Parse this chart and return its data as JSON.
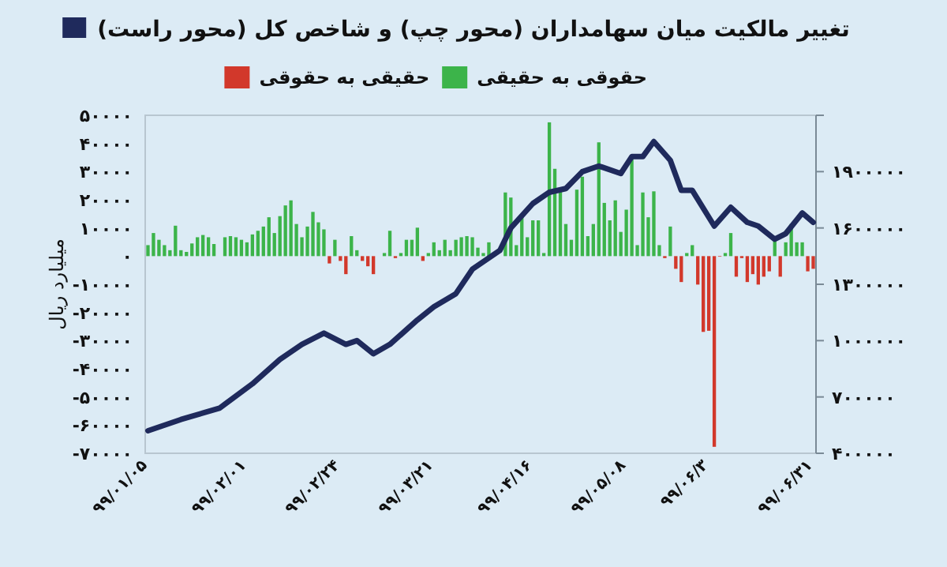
{
  "chart_data": {
    "type": "bar",
    "ylabel": "میلیارد ریال",
    "legend": "top",
    "categories": [
      "۹۹/۰۱/۰۵",
      null,
      null,
      null,
      null,
      null,
      null,
      null,
      null,
      null,
      null,
      null,
      null,
      null,
      null,
      null,
      null,
      null,
      "۹۹/۰۲/۰۱",
      null,
      null,
      null,
      null,
      null,
      null,
      null,
      null,
      null,
      null,
      null,
      null,
      null,
      null,
      null,
      null,
      "۹۹/۰۲/۲۴",
      null,
      null,
      null,
      null,
      null,
      null,
      null,
      null,
      null,
      null,
      null,
      null,
      null,
      null,
      null,
      null,
      "۹۹/۰۳/۲۱",
      null,
      null,
      null,
      null,
      null,
      null,
      null,
      null,
      null,
      null,
      null,
      null,
      null,
      null,
      null,
      null,
      null,
      "۹۹/۰۴/۱۶",
      null,
      null,
      null,
      null,
      null,
      null,
      null,
      null,
      null,
      null,
      null,
      null,
      null,
      null,
      null,
      null,
      "۹۹/۰۵/۰۸",
      null,
      null,
      null,
      null,
      null,
      null,
      null,
      null,
      null,
      null,
      null,
      null,
      null,
      null,
      "۹۹/۰۶/۳",
      null,
      null,
      null,
      null,
      null,
      null,
      null,
      null,
      null,
      null,
      null,
      null,
      null,
      null,
      null,
      null,
      null,
      null,
      "۹۹/۰۶/۳۱"
    ],
    "ylim": [
      -70000,
      50000
    ],
    "yticks": [
      {
        "value": 50000,
        "label": "۵۰۰۰۰"
      },
      {
        "value": 40000,
        "label": "۴۰۰۰۰"
      },
      {
        "value": 30000,
        "label": "۳۰۰۰۰"
      },
      {
        "value": 20000,
        "label": "۲۰۰۰۰"
      },
      {
        "value": 10000,
        "label": "۱۰۰۰۰"
      },
      {
        "value": 0,
        "label": "۰"
      },
      {
        "value": -10000,
        "label": "-۱۰۰۰۰"
      },
      {
        "value": -20000,
        "label": "-۲۰۰۰۰"
      },
      {
        "value": -30000,
        "label": "-۳۰۰۰۰"
      },
      {
        "value": -40000,
        "label": "-۴۰۰۰۰"
      },
      {
        "value": -50000,
        "label": "-۵۰۰۰۰"
      },
      {
        "value": -60000,
        "label": "-۶۰۰۰۰"
      },
      {
        "value": -70000,
        "label": "-۷۰۰۰۰"
      }
    ],
    "y2lim": [
      400000,
      2200000
    ],
    "y2ticks": [
      {
        "value": 400000,
        "label": "۴۰۰۰۰۰"
      },
      {
        "value": 700000,
        "label": "۷۰۰۰۰۰"
      },
      {
        "value": 1000000,
        "label": "۱۰۰۰۰۰۰"
      },
      {
        "value": 1300000,
        "label": "۱۳۰۰۰۰۰"
      },
      {
        "value": 1600000,
        "label": "۱۶۰۰۰۰۰"
      },
      {
        "value": 1900000,
        "label": "۱۹۰۰۰۰۰"
      },
      {
        "value": 2200000,
        "label": null
      }
    ],
    "series": [
      {
        "name": "حقوقی به حقیقی",
        "color": "#3cb44a",
        "values": [
          3900,
          8200,
          5800,
          3900,
          2100,
          10800,
          2100,
          1500,
          4500,
          6700,
          7500,
          6700,
          4300,
          null,
          6700,
          7100,
          6700,
          5800,
          4900,
          7700,
          9000,
          10500,
          13800,
          8200,
          14200,
          18000,
          19800,
          11400,
          6700,
          10500,
          15700,
          12000,
          9500,
          null,
          5800,
          null,
          null,
          7100,
          2100,
          null,
          null,
          null,
          null,
          1100,
          9000,
          null,
          1100,
          5800,
          5800,
          10100,
          null,
          1100,
          4900,
          2100,
          5800,
          2100,
          5800,
          6700,
          7100,
          6700,
          3000,
          1100,
          4900,
          null,
          null,
          22600,
          20800,
          3900,
          14200,
          6700,
          12700,
          12700,
          1100,
          47500,
          31000,
          23600,
          11400,
          5800,
          23600,
          28200,
          7100,
          11400,
          40400,
          18900,
          12700,
          19800,
          8600,
          16500,
          34800,
          3900,
          22600,
          13800,
          23000,
          3900,
          null,
          10500,
          null,
          null,
          1100,
          3900,
          null,
          null,
          null,
          null,
          null,
          1100,
          8200,
          null,
          null,
          null,
          null,
          null,
          null,
          null,
          5200,
          null,
          4900,
          11400,
          4900,
          4900,
          null,
          null
        ]
      },
      {
        "name": "حقیقی به حقوقی",
        "color": "#d2382b",
        "values": [
          null,
          null,
          null,
          null,
          null,
          null,
          null,
          null,
          null,
          null,
          null,
          null,
          null,
          null,
          null,
          null,
          null,
          null,
          null,
          null,
          null,
          null,
          null,
          null,
          null,
          null,
          null,
          null,
          null,
          null,
          null,
          null,
          null,
          -2600,
          null,
          -1700,
          -6400,
          null,
          null,
          -1700,
          -3600,
          -6400,
          null,
          null,
          null,
          -700,
          null,
          null,
          null,
          null,
          -1700,
          null,
          null,
          null,
          null,
          null,
          null,
          null,
          null,
          null,
          null,
          null,
          null,
          null,
          null,
          null,
          null,
          null,
          null,
          null,
          null,
          null,
          null,
          null,
          null,
          null,
          null,
          null,
          null,
          null,
          null,
          null,
          null,
          null,
          null,
          null,
          null,
          null,
          null,
          null,
          null,
          null,
          null,
          null,
          -700,
          null,
          -4500,
          -9200,
          null,
          null,
          -10100,
          -26900,
          -26500,
          -67700,
          -200,
          null,
          null,
          -7300,
          -700,
          -9200,
          -6400,
          -10100,
          -7300,
          -5400,
          null,
          -7300,
          null,
          null,
          null,
          null,
          -5400,
          -4500
        ]
      },
      {
        "name": "تغییر مالکیت میان سهامداران (محور چپ) و شاخص کل (محور راست)",
        "type": "line",
        "axis": "y2",
        "color": "#1f2a5c",
        "values": [
          520000,
          null,
          null,
          null,
          null,
          null,
          580000,
          null,
          null,
          null,
          null,
          null,
          null,
          640000,
          null,
          null,
          null,
          null,
          null,
          770000,
          null,
          null,
          null,
          null,
          900000,
          null,
          null,
          null,
          980000,
          null,
          null,
          null,
          1040000,
          null,
          null,
          null,
          980000,
          null,
          1000000,
          null,
          null,
          930000,
          null,
          null,
          980000,
          null,
          null,
          null,
          null,
          1110000,
          null,
          null,
          1180000,
          null,
          null,
          null,
          1250000,
          null,
          null,
          1380000,
          null,
          null,
          null,
          null,
          1480000,
          null,
          1600000,
          null,
          null,
          null,
          1730000,
          null,
          null,
          1790000,
          null,
          null,
          1810000,
          null,
          null,
          1900000,
          null,
          null,
          1930000,
          null,
          null,
          null,
          1890000,
          null,
          1980000,
          null,
          1980000,
          null,
          2060000,
          null,
          null,
          1960000,
          null,
          1800000,
          null,
          1800000,
          null,
          null,
          null,
          1610000,
          null,
          null,
          1710000,
          null,
          null,
          1630000,
          null,
          1610000,
          null,
          null,
          1540000,
          null,
          1570000,
          null,
          null,
          1680000,
          null,
          1630000
        ]
      }
    ]
  }
}
